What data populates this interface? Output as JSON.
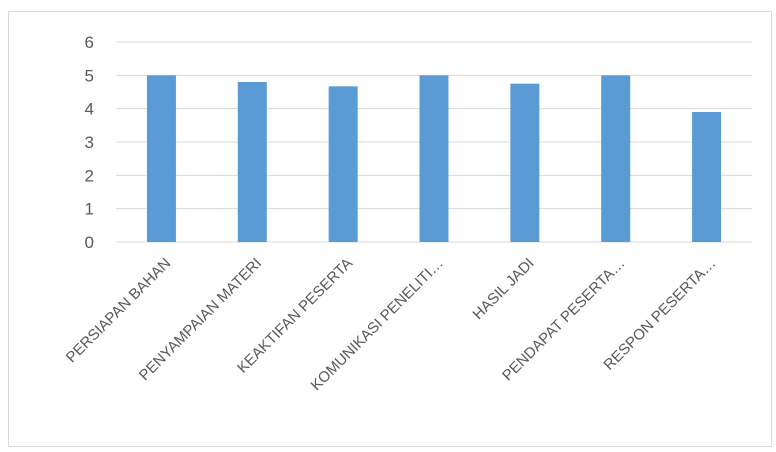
{
  "chart_data": {
    "type": "bar",
    "categories": [
      "PERSIAPAN BAHAN",
      "PENYAMPAIAN MATERI",
      "KEAKTIFAN PESERTA",
      "KOMUNIKASI PENELITI…",
      "HASIL JADI",
      "PENDAPAT PESERTA…",
      "RESPON PESERTA…"
    ],
    "values": [
      5.0,
      4.8,
      4.67,
      5.0,
      4.75,
      5.0,
      3.9
    ],
    "yticks": [
      0,
      1,
      2,
      3,
      4,
      5,
      6
    ],
    "ylim": [
      0,
      6
    ],
    "grid": true,
    "legend": "none",
    "bar_color": "#5B9BD5",
    "grid_color": "#d9d9d9",
    "title": "",
    "xlabel": "",
    "ylabel": ""
  }
}
